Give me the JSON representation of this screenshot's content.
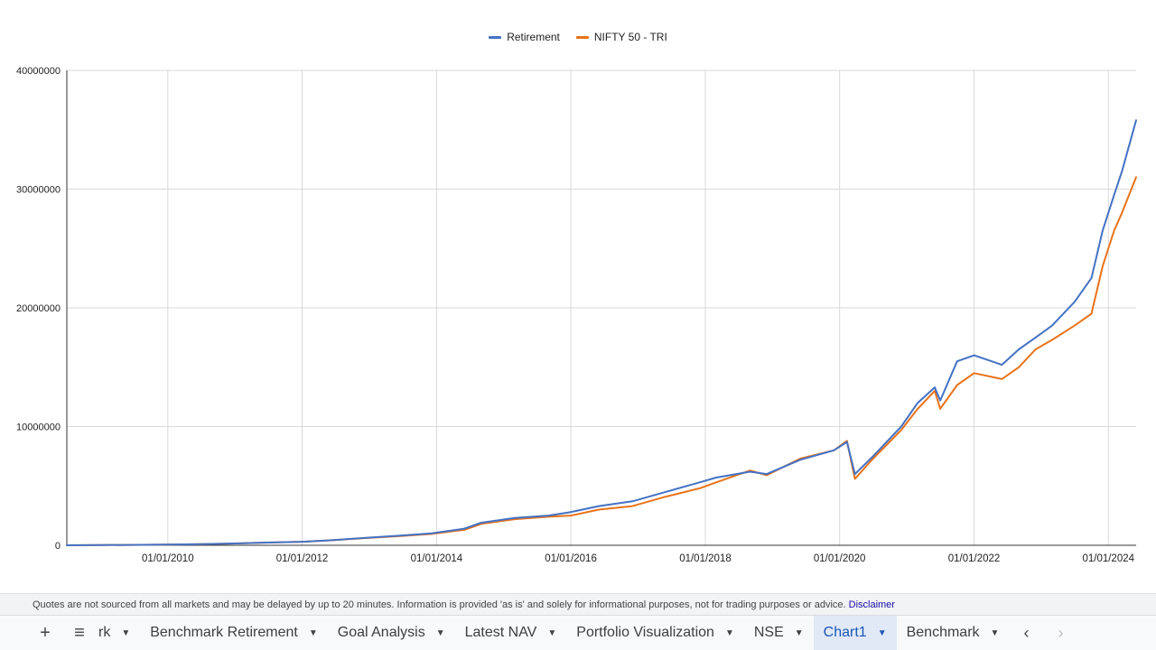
{
  "colors": {
    "retirement": "#4472c4",
    "nifty": "#e8731a",
    "grid": "#d9d9d9",
    "axis": "#333333"
  },
  "chart_data": {
    "type": "line",
    "title": "",
    "xlabel": "",
    "ylabel": "",
    "x_range": [
      "2008-07-01",
      "2024-05-31"
    ],
    "ylim": [
      0,
      40000000
    ],
    "y_ticks": [
      0,
      10000000,
      20000000,
      30000000,
      40000000
    ],
    "y_tick_labels": [
      "0",
      "10000000",
      "20000000",
      "30000000",
      "40000000"
    ],
    "x_ticks": [
      "2010-01-01",
      "2012-01-01",
      "2014-01-01",
      "2016-01-01",
      "2018-01-01",
      "2020-01-01",
      "2022-01-01",
      "2024-01-01"
    ],
    "x_tick_labels": [
      "01/01/2010",
      "01/01/2012",
      "01/01/2014",
      "01/01/2016",
      "01/01/2018",
      "01/01/2020",
      "01/01/2022",
      "01/01/2024"
    ],
    "grid": true,
    "legend_position": "top",
    "series": [
      {
        "name": "Retirement",
        "color_key": "retirement",
        "points": [
          [
            "2008-07-01",
            0
          ],
          [
            "2009-06-01",
            30000
          ],
          [
            "2010-01-01",
            50000
          ],
          [
            "2010-06-01",
            80000
          ],
          [
            "2011-01-01",
            150000
          ],
          [
            "2011-06-01",
            220000
          ],
          [
            "2012-01-01",
            300000
          ],
          [
            "2012-06-01",
            420000
          ],
          [
            "2013-01-01",
            650000
          ],
          [
            "2013-06-01",
            800000
          ],
          [
            "2013-12-01",
            1000000
          ],
          [
            "2014-06-01",
            1400000
          ],
          [
            "2014-09-01",
            1900000
          ],
          [
            "2015-03-01",
            2300000
          ],
          [
            "2015-09-01",
            2500000
          ],
          [
            "2016-01-01",
            2800000
          ],
          [
            "2016-06-01",
            3300000
          ],
          [
            "2016-12-01",
            3700000
          ],
          [
            "2017-06-01",
            4500000
          ],
          [
            "2017-12-01",
            5300000
          ],
          [
            "2018-03-01",
            5700000
          ],
          [
            "2018-09-01",
            6200000
          ],
          [
            "2018-12-01",
            6000000
          ],
          [
            "2019-06-01",
            7200000
          ],
          [
            "2019-12-01",
            8000000
          ],
          [
            "2020-02-10",
            8700000
          ],
          [
            "2020-03-24",
            6000000
          ],
          [
            "2020-07-01",
            7500000
          ],
          [
            "2020-12-01",
            10000000
          ],
          [
            "2021-03-01",
            12000000
          ],
          [
            "2021-06-01",
            13300000
          ],
          [
            "2021-07-01",
            12200000
          ],
          [
            "2021-10-01",
            15500000
          ],
          [
            "2022-01-01",
            16000000
          ],
          [
            "2022-06-01",
            15200000
          ],
          [
            "2022-09-01",
            16500000
          ],
          [
            "2022-12-01",
            17500000
          ],
          [
            "2023-03-01",
            18500000
          ],
          [
            "2023-07-01",
            20500000
          ],
          [
            "2023-10-01",
            22500000
          ],
          [
            "2023-12-01",
            26500000
          ],
          [
            "2024-02-01",
            29500000
          ],
          [
            "2024-03-15",
            31500000
          ],
          [
            "2024-05-31",
            35800000
          ]
        ]
      },
      {
        "name": "NIFTY 50 - TRI",
        "color_key": "nifty",
        "points": [
          [
            "2008-07-01",
            0
          ],
          [
            "2009-06-01",
            30000
          ],
          [
            "2010-01-01",
            50000
          ],
          [
            "2010-06-01",
            80000
          ],
          [
            "2011-01-01",
            150000
          ],
          [
            "2011-06-01",
            220000
          ],
          [
            "2012-01-01",
            300000
          ],
          [
            "2012-06-01",
            420000
          ],
          [
            "2013-01-01",
            620000
          ],
          [
            "2013-06-01",
            760000
          ],
          [
            "2013-12-01",
            950000
          ],
          [
            "2014-06-01",
            1300000
          ],
          [
            "2014-09-01",
            1800000
          ],
          [
            "2015-03-01",
            2200000
          ],
          [
            "2015-09-01",
            2400000
          ],
          [
            "2016-01-01",
            2500000
          ],
          [
            "2016-06-01",
            3000000
          ],
          [
            "2016-12-01",
            3300000
          ],
          [
            "2017-06-01",
            4100000
          ],
          [
            "2017-12-01",
            4800000
          ],
          [
            "2018-03-01",
            5300000
          ],
          [
            "2018-09-01",
            6300000
          ],
          [
            "2018-12-01",
            5900000
          ],
          [
            "2019-06-01",
            7300000
          ],
          [
            "2019-12-01",
            8000000
          ],
          [
            "2020-02-10",
            8800000
          ],
          [
            "2020-03-24",
            5600000
          ],
          [
            "2020-07-01",
            7300000
          ],
          [
            "2020-12-01",
            9700000
          ],
          [
            "2021-03-01",
            11500000
          ],
          [
            "2021-06-01",
            13000000
          ],
          [
            "2021-07-01",
            11500000
          ],
          [
            "2021-10-01",
            13500000
          ],
          [
            "2022-01-01",
            14500000
          ],
          [
            "2022-06-01",
            14000000
          ],
          [
            "2022-09-01",
            15000000
          ],
          [
            "2022-12-01",
            16500000
          ],
          [
            "2023-03-01",
            17300000
          ],
          [
            "2023-07-01",
            18500000
          ],
          [
            "2023-10-01",
            19500000
          ],
          [
            "2023-12-01",
            23500000
          ],
          [
            "2024-02-01",
            26500000
          ],
          [
            "2024-03-15",
            28000000
          ],
          [
            "2024-05-31",
            31000000
          ]
        ]
      }
    ]
  },
  "disclaimer": {
    "text": "Quotes are not sourced from all markets and may be delayed by up to 20 minutes. Information is provided 'as is' and solely for informational purposes, not for trading purposes or advice.",
    "link_label": "Disclaimer"
  },
  "sheet_bar": {
    "add_icon": "+",
    "menu_icon": "≡",
    "tabs": [
      {
        "label": "rk",
        "active": false
      },
      {
        "label": "Benchmark Retirement",
        "active": false
      },
      {
        "label": "Goal Analysis",
        "active": false
      },
      {
        "label": "Latest NAV",
        "active": false
      },
      {
        "label": "Portfolio Visualization",
        "active": false
      },
      {
        "label": "NSE",
        "active": false
      },
      {
        "label": "Chart1",
        "active": true
      },
      {
        "label": "Benchmark",
        "active": false
      }
    ],
    "prev_icon": "‹",
    "next_icon": "›",
    "caret": "▼"
  }
}
